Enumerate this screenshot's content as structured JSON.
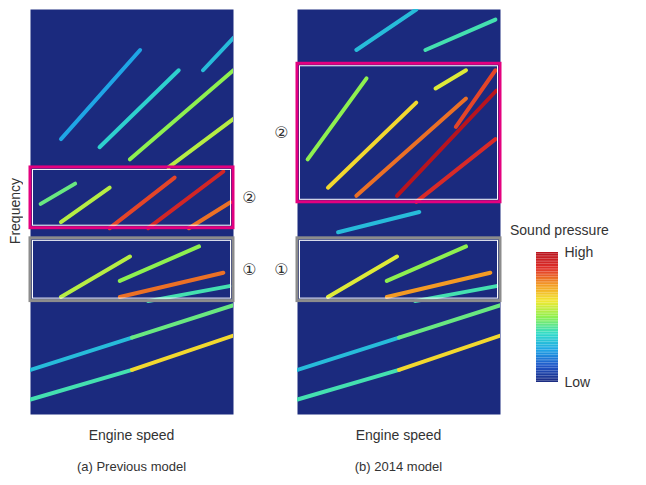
{
  "chart_data": [
    {
      "type": "spectrogram",
      "ylabel": "Frequency",
      "xlabel": "Engine speed",
      "caption": "(a) Previous model",
      "xlim": [
        0,
        100
      ],
      "ylim": [
        0,
        100
      ],
      "tick_labels": false,
      "streaks": [
        {
          "x1": 0,
          "y1": 3.7,
          "x2": 50,
          "y2": 11,
          "level": 0.4
        },
        {
          "x1": 50,
          "y1": 11,
          "x2": 100,
          "y2": 19.5,
          "level": 0.65
        },
        {
          "x1": 0,
          "y1": 11,
          "x2": 50,
          "y2": 19,
          "level": 0.3
        },
        {
          "x1": 50,
          "y1": 19,
          "x2": 100,
          "y2": 27,
          "level": 0.45
        },
        {
          "x1": 44,
          "y1": 29,
          "x2": 95,
          "y2": 35,
          "level": 0.8
        },
        {
          "x1": 15,
          "y1": 29,
          "x2": 49,
          "y2": 39,
          "level": 0.55
        },
        {
          "x1": 44,
          "y1": 33,
          "x2": 83,
          "y2": 41.5,
          "level": 0.5
        },
        {
          "x1": 58,
          "y1": 28,
          "x2": 98,
          "y2": 31.7,
          "level": 0.4
        },
        {
          "x1": 58,
          "y1": 46,
          "x2": 95,
          "y2": 60,
          "level": 0.92
        },
        {
          "x1": 39,
          "y1": 46,
          "x2": 71,
          "y2": 58.5,
          "level": 0.85
        },
        {
          "x1": 78,
          "y1": 46,
          "x2": 98.5,
          "y2": 52.4,
          "level": 0.8
        },
        {
          "x1": 15,
          "y1": 47.5,
          "x2": 39,
          "y2": 56,
          "level": 0.55
        },
        {
          "x1": 5,
          "y1": 52,
          "x2": 22,
          "y2": 57,
          "level": 0.45
        },
        {
          "x1": 49,
          "y1": 63,
          "x2": 100,
          "y2": 85,
          "level": 0.5
        },
        {
          "x1": 68,
          "y1": 61,
          "x2": 100,
          "y2": 73,
          "level": 0.55
        },
        {
          "x1": 34,
          "y1": 66,
          "x2": 73,
          "y2": 85,
          "level": 0.35
        },
        {
          "x1": 15,
          "y1": 68,
          "x2": 54,
          "y2": 90,
          "level": 0.25
        },
        {
          "x1": 85,
          "y1": 85,
          "x2": 100,
          "y2": 93,
          "level": 0.3
        }
      ],
      "regions": [
        {
          "label": "②",
          "y": [
            46,
            61
          ],
          "color": "#e4007f"
        },
        {
          "label": "①",
          "y": [
            28,
            43.5
          ],
          "color": "#8c8c8c"
        }
      ]
    },
    {
      "type": "spectrogram",
      "xlabel": "Engine speed",
      "caption": "(b) 2014 model",
      "xlim": [
        0,
        100
      ],
      "ylim": [
        0,
        100
      ],
      "tick_labels": false,
      "streaks": [
        {
          "x1": 0,
          "y1": 3.7,
          "x2": 50,
          "y2": 11,
          "level": 0.4
        },
        {
          "x1": 50,
          "y1": 11,
          "x2": 100,
          "y2": 19.5,
          "level": 0.65
        },
        {
          "x1": 0,
          "y1": 11,
          "x2": 50,
          "y2": 19,
          "level": 0.3
        },
        {
          "x1": 50,
          "y1": 19,
          "x2": 100,
          "y2": 27,
          "level": 0.45
        },
        {
          "x1": 44,
          "y1": 29,
          "x2": 95,
          "y2": 35,
          "level": 0.75
        },
        {
          "x1": 15,
          "y1": 29,
          "x2": 49,
          "y2": 39,
          "level": 0.6
        },
        {
          "x1": 44,
          "y1": 33,
          "x2": 83,
          "y2": 41.5,
          "level": 0.5
        },
        {
          "x1": 58,
          "y1": 28,
          "x2": 98,
          "y2": 31.7,
          "level": 0.4
        },
        {
          "x1": 20,
          "y1": 45,
          "x2": 60,
          "y2": 50,
          "level": 0.3
        },
        {
          "x1": 49,
          "y1": 54,
          "x2": 98,
          "y2": 80,
          "level": 1
        },
        {
          "x1": 58.5,
          "y1": 52.5,
          "x2": 97.5,
          "y2": 68,
          "level": 0.9
        },
        {
          "x1": 29,
          "y1": 54,
          "x2": 83,
          "y2": 78,
          "level": 0.8
        },
        {
          "x1": 15,
          "y1": 56,
          "x2": 58.5,
          "y2": 77,
          "level": 0.65
        },
        {
          "x1": 78,
          "y1": 71,
          "x2": 97.5,
          "y2": 85,
          "level": 0.85
        },
        {
          "x1": 5,
          "y1": 63,
          "x2": 34,
          "y2": 83,
          "level": 0.5
        },
        {
          "x1": 68,
          "y1": 80.5,
          "x2": 83,
          "y2": 85,
          "level": 0.6
        },
        {
          "x1": 63,
          "y1": 90,
          "x2": 97.5,
          "y2": 97.5,
          "level": 0.4
        },
        {
          "x1": 29,
          "y1": 90,
          "x2": 58.5,
          "y2": 100,
          "level": 0.3
        }
      ],
      "regions": [
        {
          "label": "②",
          "y": [
            52.4,
            86.6
          ],
          "color": "#e4007f"
        },
        {
          "label": "①",
          "y": [
            28,
            43.5
          ],
          "color": "#8c8c8c"
        }
      ],
      "colorbar": {
        "title": "Sound pressure",
        "range": [
          0,
          1
        ],
        "ticks": [
          {
            "value": 0,
            "label": "Low"
          },
          {
            "value": 1,
            "label": "High"
          }
        ]
      }
    }
  ]
}
